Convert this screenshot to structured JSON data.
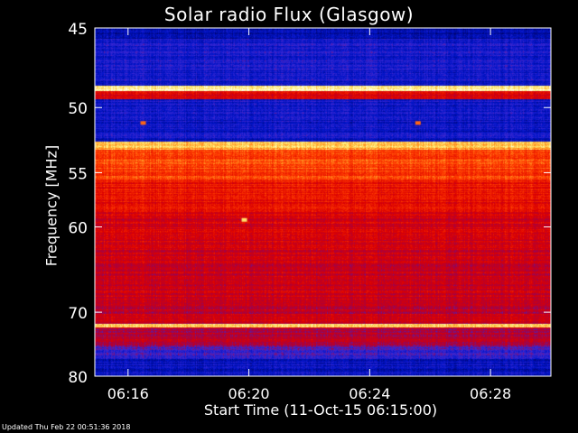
{
  "chart_data": {
    "type": "heatmap",
    "title": "Solar radio Flux (Glasgow)",
    "xlabel": "Start Time (11-Oct-15 06:15:00)",
    "ylabel": "Frequency [MHz]",
    "x_ticks": [
      "06:16",
      "06:20",
      "06:24",
      "06:28"
    ],
    "x_tick_minutes": [
      16,
      20,
      24,
      28
    ],
    "xlim_minutes": [
      14.9,
      30.0
    ],
    "y_ticks": [
      45,
      50,
      55,
      60,
      70,
      80
    ],
    "ylim": [
      45,
      80
    ],
    "y_scale": "log-like (decreasing spacing at higher frequency)",
    "colormap": "blue-red-yellow-white",
    "bands": [
      {
        "from": 45.0,
        "to": 45.6,
        "level": 0.12
      },
      {
        "from": 45.6,
        "to": 48.5,
        "level": 0.22
      },
      {
        "from": 48.5,
        "to": 48.9,
        "level": 0.95
      },
      {
        "from": 48.9,
        "to": 49.4,
        "level": 0.55
      },
      {
        "from": 49.4,
        "to": 52.5,
        "level": 0.2
      },
      {
        "from": 52.5,
        "to": 53.1,
        "level": 0.85
      },
      {
        "from": 53.1,
        "to": 55.7,
        "level": 0.7
      },
      {
        "from": 55.7,
        "to": 58.5,
        "level": 0.6
      },
      {
        "from": 58.5,
        "to": 62.0,
        "level": 0.52
      },
      {
        "from": 62.0,
        "to": 68.0,
        "level": 0.5
      },
      {
        "from": 68.0,
        "to": 71.6,
        "level": 0.48
      },
      {
        "from": 71.6,
        "to": 72.1,
        "level": 0.88
      },
      {
        "from": 72.1,
        "to": 75.0,
        "level": 0.45
      },
      {
        "from": 75.0,
        "to": 77.0,
        "level": 0.3
      },
      {
        "from": 77.0,
        "to": 80.0,
        "level": 0.18
      }
    ],
    "hotspots": [
      {
        "minute": 19.85,
        "freq": 59.3,
        "level": 0.9
      },
      {
        "minute": 16.5,
        "freq": 51.1,
        "level": 0.75
      },
      {
        "minute": 25.6,
        "freq": 51.1,
        "level": 0.75
      }
    ]
  },
  "colors": {
    "background": "#000000",
    "low": "#0010a0",
    "mid": "#d00000",
    "high": "#ffff80"
  },
  "footer": "Updated Thu Feb 22 00:51:36 2018"
}
